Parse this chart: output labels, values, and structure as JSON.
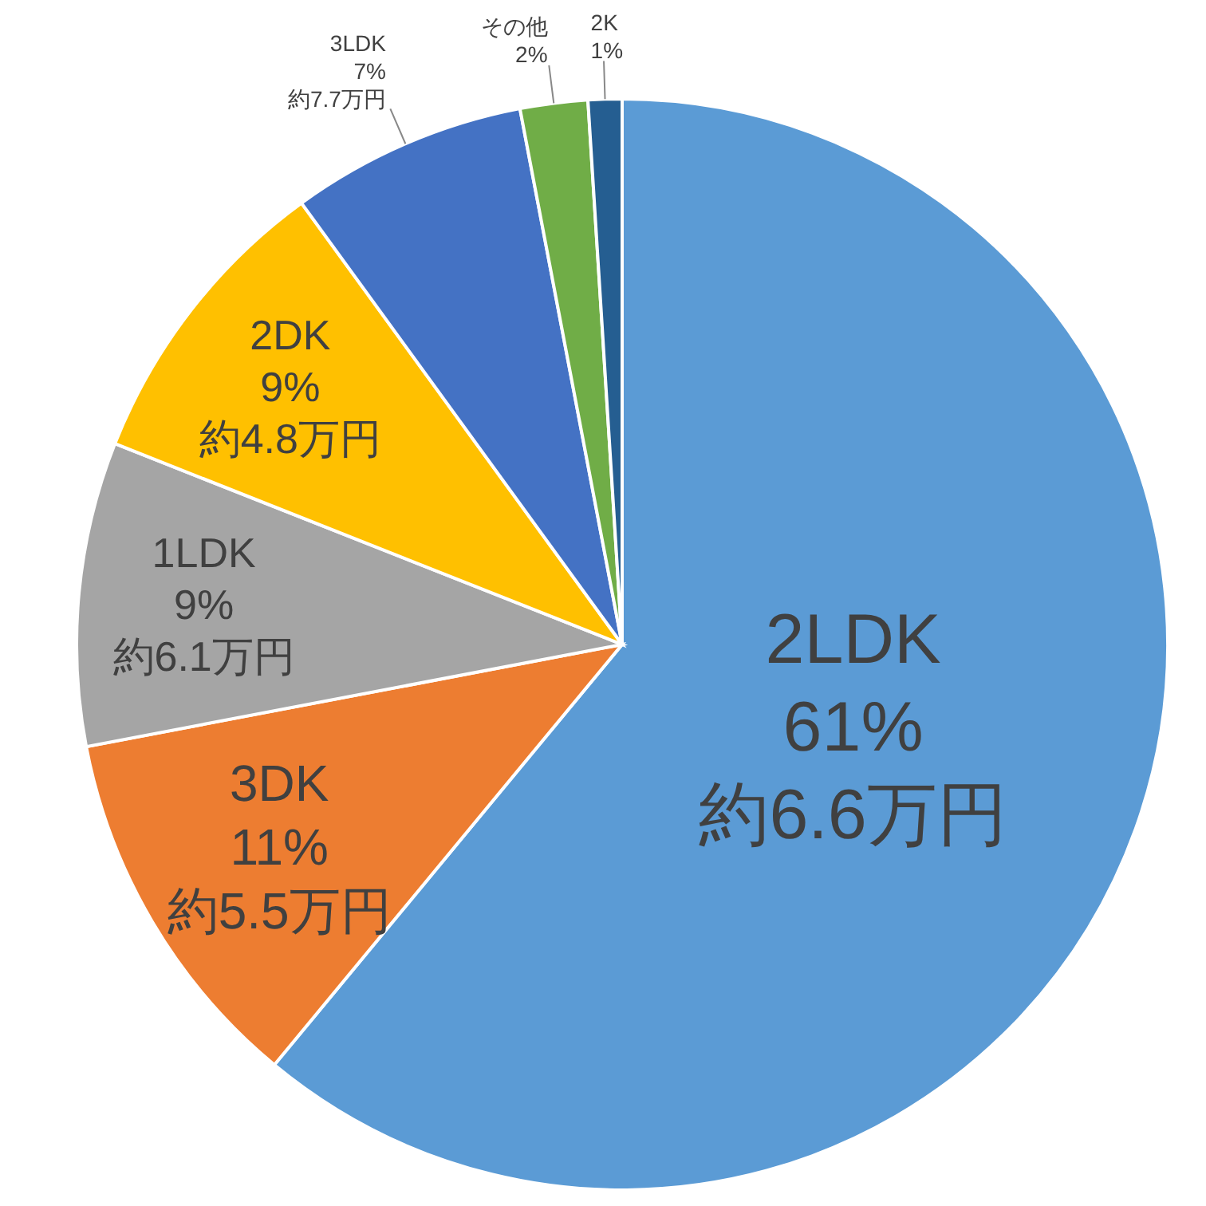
{
  "chart_data": {
    "type": "pie",
    "categories": [
      "2LDK",
      "3DK",
      "1LDK",
      "2DK",
      "3LDK",
      "その他",
      "2K"
    ],
    "values": [
      61,
      11,
      9,
      9,
      7,
      2,
      1
    ],
    "colors": [
      "#5b9bd5",
      "#ed7d31",
      "#a5a5a5",
      "#ffc000",
      "#4472c4",
      "#70ad47",
      "#255e91"
    ],
    "value_labels": [
      "61%",
      "11%",
      "9%",
      "9%",
      "7%",
      "2%",
      "1%"
    ],
    "annotations": [
      {
        "text": "約6.6万円",
        "x": "2LDK"
      },
      {
        "text": "約5.5万円",
        "x": "3DK"
      },
      {
        "text": "約6.1万円",
        "x": "1LDK"
      },
      {
        "text": "約4.8万円",
        "x": "2DK"
      },
      {
        "text": "約7.7万円",
        "x": "3LDK"
      }
    ]
  }
}
